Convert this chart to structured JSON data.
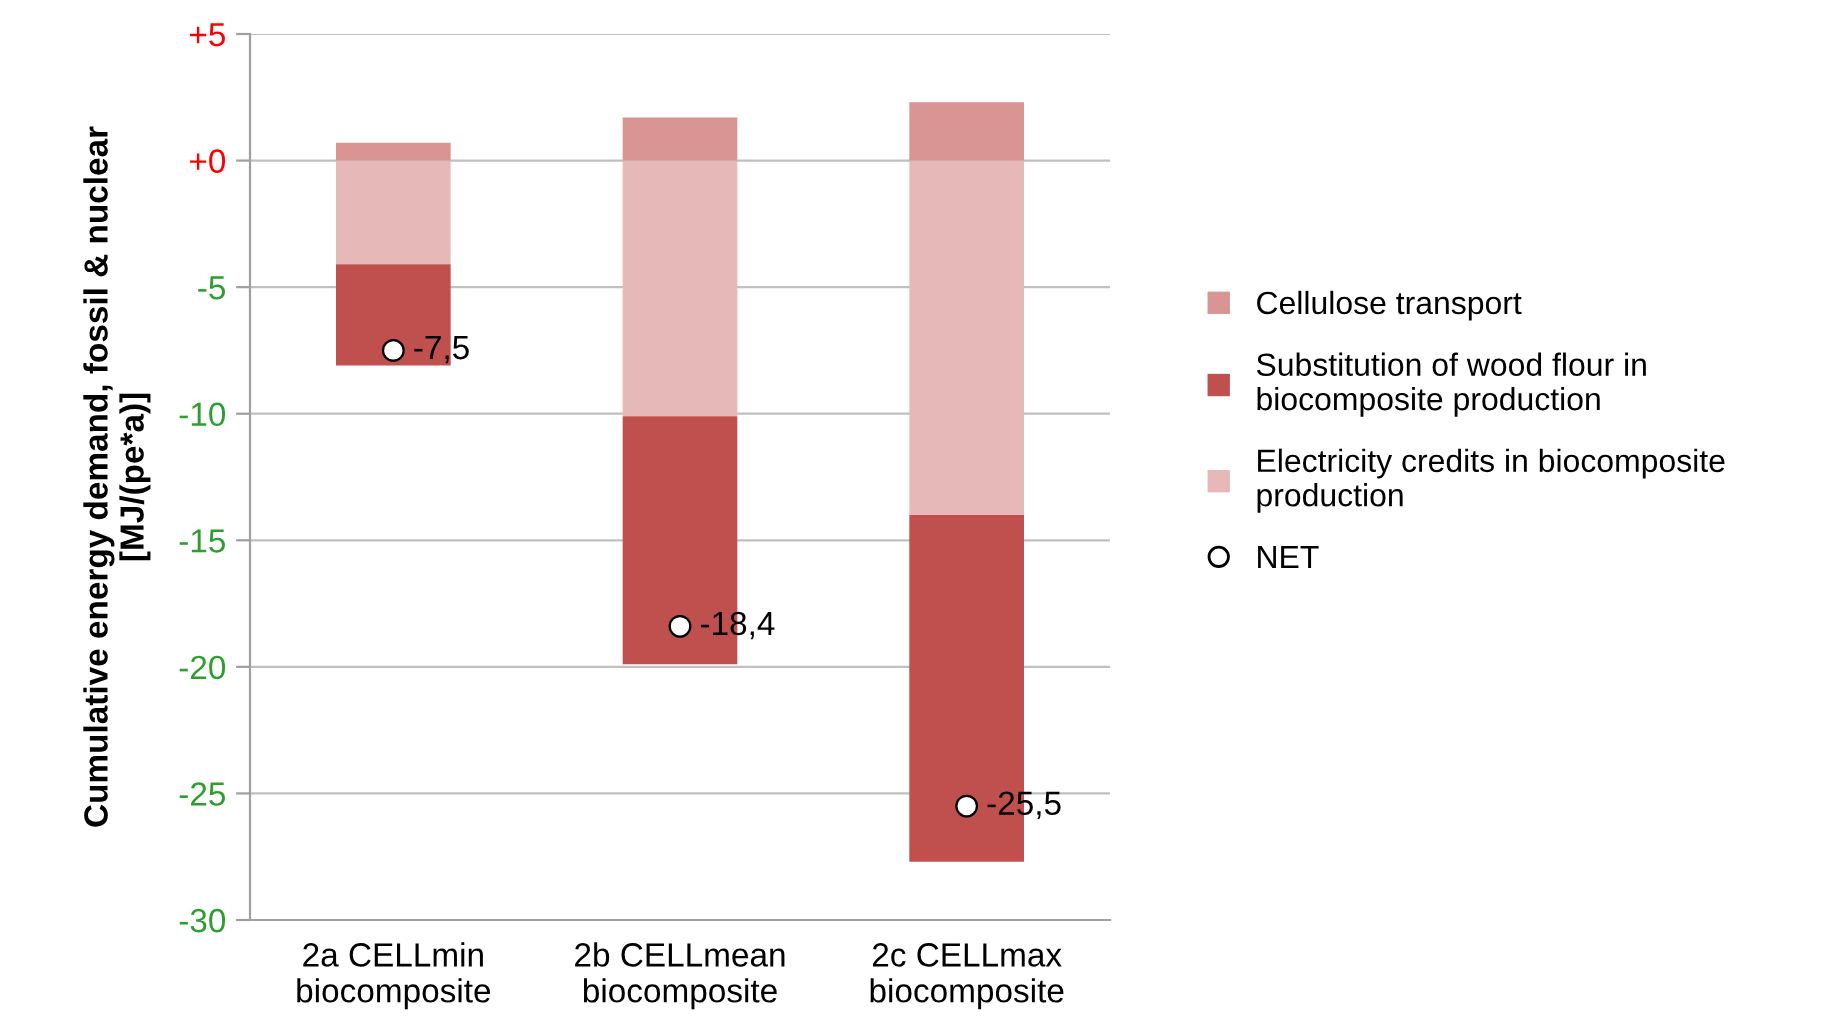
{
  "chart_data": {
    "type": "bar",
    "stacked": true,
    "ylabel": "Cumulative energy demand, fossil & nuclear\n[MJ/(pe*a)]",
    "categories": [
      "2a CELLmin\nbiocomposite",
      "2b CELLmean\nbiocomposite",
      "2c CELLmax\nbiocomposite"
    ],
    "series": [
      {
        "name": "Electricity credits in biocomposite\nproduction",
        "color": "#e6b9b8",
        "values": [
          -4.1,
          -10.1,
          -14.0
        ]
      },
      {
        "name": "Substitution of wood flour in\nbiocomposite production",
        "color": "#c0504d",
        "values": [
          -4.0,
          -9.8,
          -13.7
        ]
      },
      {
        "name": "Cellulose transport",
        "color": "#d99594",
        "values": [
          0.7,
          1.7,
          2.3
        ]
      },
      {
        "name": "NET",
        "type": "scatter",
        "color": "#ffffff",
        "marker": "circle",
        "values": [
          -7.5,
          -18.4,
          -25.5
        ],
        "value_labels": [
          "-7,5",
          "-18,4",
          "-25,5"
        ]
      }
    ],
    "ylim": [
      -30,
      5
    ],
    "yticks": [
      {
        "value": 5,
        "label": "+5"
      },
      {
        "value": 0,
        "label": "+0"
      },
      {
        "value": -5,
        "label": "-5"
      },
      {
        "value": -10,
        "label": "-10"
      },
      {
        "value": -15,
        "label": "-15"
      },
      {
        "value": -20,
        "label": "-20"
      },
      {
        "value": -25,
        "label": "-25"
      },
      {
        "value": -30,
        "label": "-30"
      }
    ],
    "grid": "y",
    "legend": "right"
  }
}
